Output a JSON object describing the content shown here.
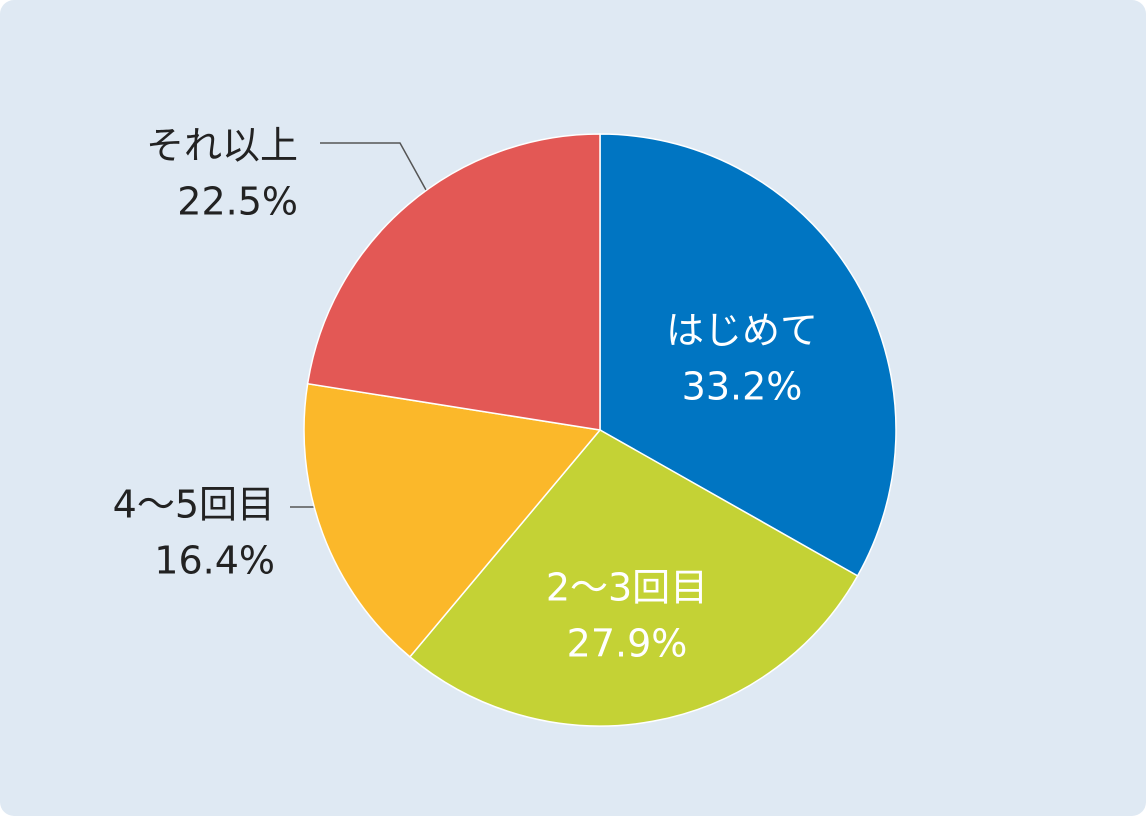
{
  "chart_data": {
    "type": "pie",
    "categories": [
      "はじめて",
      "2〜3回目",
      "4〜5回目",
      "それ以上"
    ],
    "values": [
      33.2,
      27.9,
      16.4,
      22.5
    ],
    "value_labels": [
      "33.2%",
      "27.9%",
      "16.4%",
      "22.5%"
    ],
    "colors": [
      "#0075c2",
      "#c4d235",
      "#fbb82a",
      "#e35855"
    ]
  }
}
